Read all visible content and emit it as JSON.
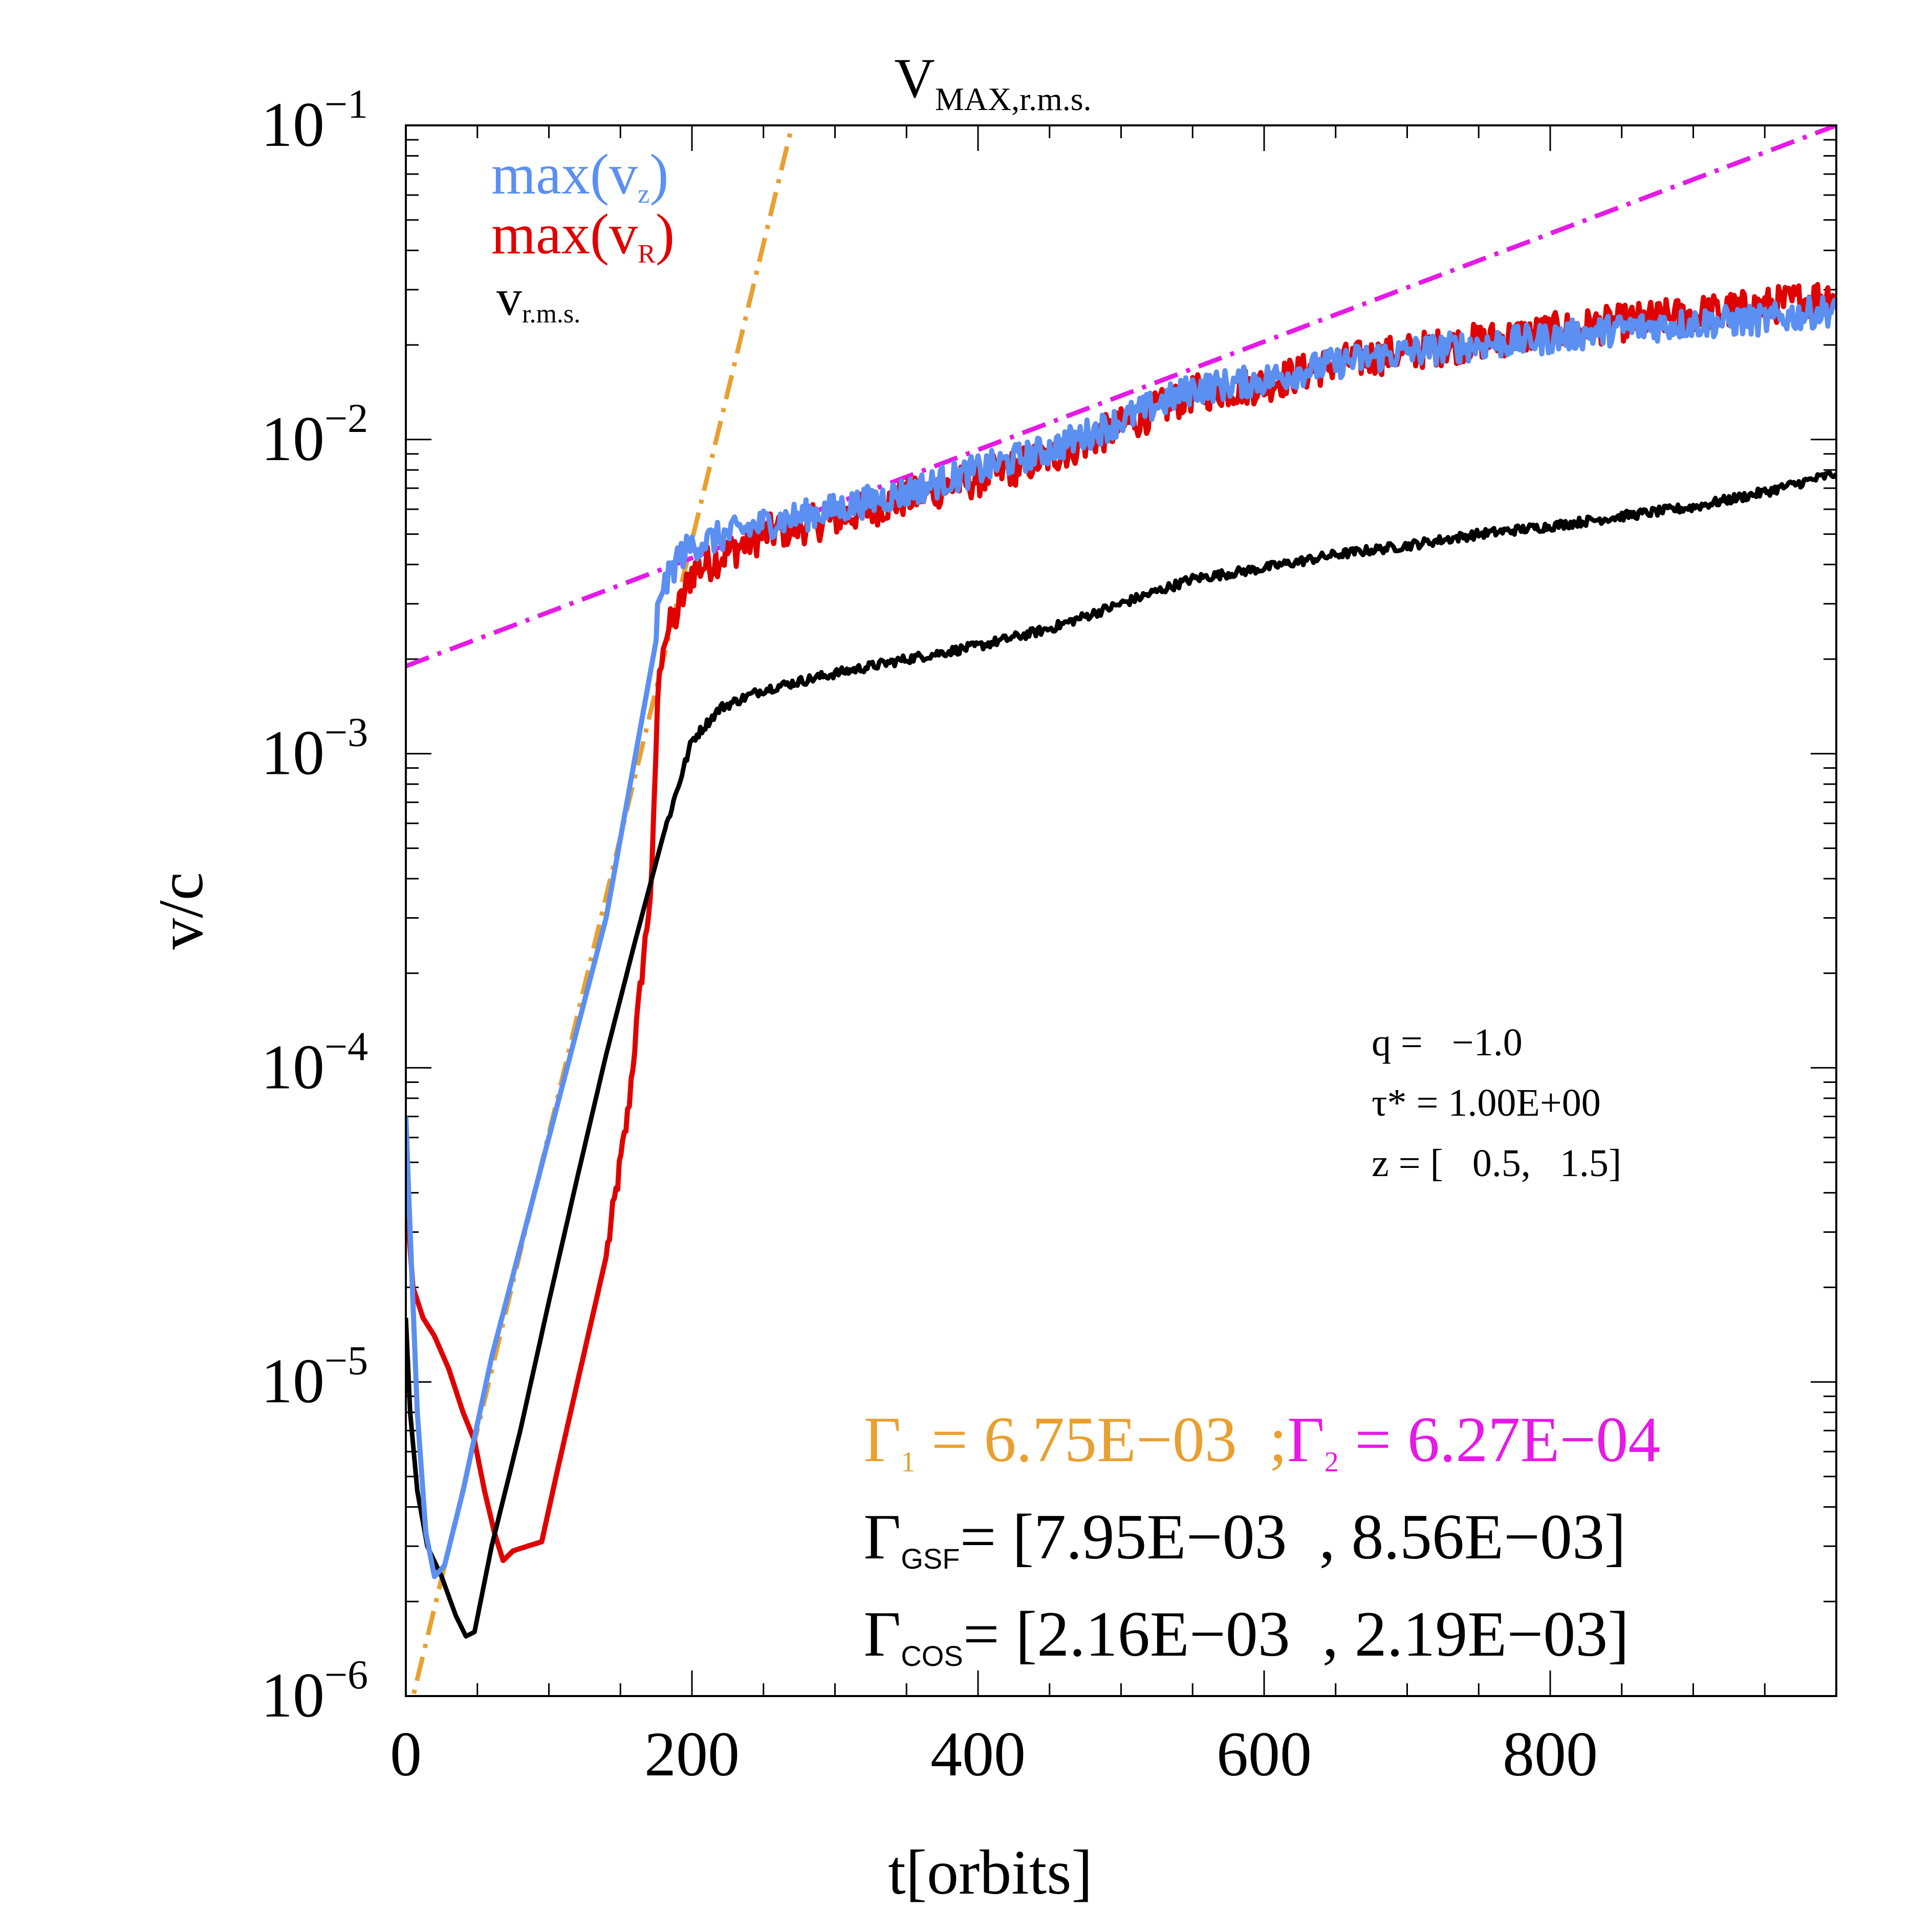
{
  "chart_data": {
    "type": "line",
    "title": "V",
    "title_sub": "MAX,r.m.s.",
    "xlabel": "t[orbits]",
    "ylabel": "v/c",
    "xlim": [
      0,
      1000
    ],
    "ylim": [
      1e-06,
      0.1
    ],
    "yscale": "log",
    "x_ticks": [
      {
        "value": 0,
        "label": "0"
      },
      {
        "value": 200,
        "label": "200"
      },
      {
        "value": 400,
        "label": "400"
      },
      {
        "value": 600,
        "label": "600"
      },
      {
        "value": 800,
        "label": "800"
      }
    ],
    "y_ticks": [
      {
        "value": 0.1,
        "base": "10",
        "exp": "−1"
      },
      {
        "value": 0.01,
        "base": "10",
        "exp": "−2"
      },
      {
        "value": 0.001,
        "base": "10",
        "exp": "−3"
      },
      {
        "value": 0.0001,
        "base": "10",
        "exp": "−4"
      },
      {
        "value": 1e-05,
        "base": "10",
        "exp": "−5"
      },
      {
        "value": 1e-06,
        "base": "10",
        "exp": "−6"
      }
    ],
    "legend": [
      {
        "label": "max(v",
        "sub": "z",
        "close": ")",
        "color": "#5b8ff2"
      },
      {
        "label": "max(v",
        "sub": "R",
        "close": ")",
        "color": "#e00000"
      },
      {
        "label": "v",
        "sub": "r.m.s.",
        "close": "",
        "color": "#000000"
      }
    ],
    "series": [
      {
        "name": "max(v_z)",
        "color": "#5b8ff2",
        "noise": 0.05,
        "points": [
          [
            0,
            7e-05
          ],
          [
            3,
            3e-05
          ],
          [
            8,
            8e-06
          ],
          [
            14,
            3.3e-06
          ],
          [
            20,
            2.4e-06
          ],
          [
            27,
            2.6e-06
          ],
          [
            40,
            4.5e-06
          ],
          [
            60,
            1.2e-05
          ],
          [
            100,
            6e-05
          ],
          [
            140,
            0.0003
          ],
          [
            175,
            0.0023
          ],
          [
            176,
            0.003
          ],
          [
            180,
            0.0033
          ],
          [
            190,
            0.0042
          ],
          [
            200,
            0.0046
          ],
          [
            250,
            0.0054
          ],
          [
            300,
            0.006
          ],
          [
            350,
            0.0068
          ],
          [
            400,
            0.008
          ],
          [
            450,
            0.0093
          ],
          [
            500,
            0.0115
          ],
          [
            550,
            0.0145
          ],
          [
            600,
            0.0155
          ],
          [
            650,
            0.0175
          ],
          [
            700,
            0.019
          ],
          [
            750,
            0.02
          ],
          [
            800,
            0.021
          ],
          [
            850,
            0.0225
          ],
          [
            900,
            0.0235
          ],
          [
            950,
            0.024
          ],
          [
            1000,
            0.026
          ]
        ]
      },
      {
        "name": "max(v_R)",
        "color": "#e00000",
        "noise": 0.06,
        "points": [
          [
            0,
            4e-05
          ],
          [
            5,
            2e-05
          ],
          [
            12,
            1.6e-05
          ],
          [
            20,
            1.4e-05
          ],
          [
            30,
            1.1e-05
          ],
          [
            40,
            8e-06
          ],
          [
            48,
            6.5e-06
          ],
          [
            55,
            4.5e-06
          ],
          [
            62,
            3.3e-06
          ],
          [
            68,
            2.7e-06
          ],
          [
            75,
            2.9e-06
          ],
          [
            85,
            3e-06
          ],
          [
            95,
            3.1e-06
          ],
          [
            105,
            5e-06
          ],
          [
            120,
            1e-05
          ],
          [
            140,
            2.5e-05
          ],
          [
            155,
            7e-05
          ],
          [
            165,
            0.0002
          ],
          [
            172,
            0.0004
          ],
          [
            176,
            0.0015
          ],
          [
            180,
            0.0023
          ],
          [
            190,
            0.0028
          ],
          [
            200,
            0.0038
          ],
          [
            250,
            0.005
          ],
          [
            300,
            0.0056
          ],
          [
            350,
            0.0065
          ],
          [
            400,
            0.0075
          ],
          [
            450,
            0.0088
          ],
          [
            500,
            0.011
          ],
          [
            550,
            0.014
          ],
          [
            600,
            0.015
          ],
          [
            650,
            0.0175
          ],
          [
            700,
            0.019
          ],
          [
            750,
            0.0205
          ],
          [
            800,
            0.022
          ],
          [
            850,
            0.0235
          ],
          [
            900,
            0.025
          ],
          [
            950,
            0.0265
          ],
          [
            1000,
            0.029
          ]
        ]
      },
      {
        "name": "v_r.m.s.",
        "color": "#000000",
        "noise": 0.015,
        "points": [
          [
            0,
            1.6e-05
          ],
          [
            3,
            8e-06
          ],
          [
            8,
            4.5e-06
          ],
          [
            15,
            3e-06
          ],
          [
            25,
            2.4e-06
          ],
          [
            35,
            1.8e-06
          ],
          [
            42,
            1.55e-06
          ],
          [
            48,
            1.6e-06
          ],
          [
            60,
            3e-06
          ],
          [
            80,
            7e-06
          ],
          [
            100,
            1.8e-05
          ],
          [
            120,
            4.5e-05
          ],
          [
            140,
            0.00011
          ],
          [
            160,
            0.00025
          ],
          [
            180,
            0.00055
          ],
          [
            200,
            0.0011
          ],
          [
            220,
            0.0014
          ],
          [
            250,
            0.0016
          ],
          [
            300,
            0.0018
          ],
          [
            350,
            0.002
          ],
          [
            400,
            0.0022
          ],
          [
            450,
            0.0025
          ],
          [
            500,
            0.003
          ],
          [
            550,
            0.0036
          ],
          [
            600,
            0.0039
          ],
          [
            650,
            0.0043
          ],
          [
            700,
            0.0046
          ],
          [
            750,
            0.005
          ],
          [
            800,
            0.0053
          ],
          [
            850,
            0.0057
          ],
          [
            900,
            0.0061
          ],
          [
            950,
            0.0068
          ],
          [
            1000,
            0.0078
          ]
        ]
      }
    ],
    "fit_lines": [
      {
        "name": "Gamma_1 fit",
        "color": "#e8a030",
        "points": [
          [
            0,
            8e-07
          ],
          [
            270,
            0.1
          ]
        ]
      },
      {
        "name": "Gamma_2 fit",
        "color": "#e619e6",
        "points": [
          [
            0,
            0.0019
          ],
          [
            1000,
            0.1
          ]
        ]
      }
    ],
    "params": [
      "q =   −1.0",
      "τ* = 1.00E+00",
      "z = [   0.5,   1.5]"
    ],
    "annotations": {
      "gamma1": {
        "symbol": "Γ",
        "sub": "1",
        "text": " = 6.75E−03  ;",
        "color": "#e8a030"
      },
      "gamma2": {
        "symbol": "Γ",
        "sub": "2",
        "text": " = 6.27E−04",
        "color": "#e619e6"
      },
      "gsf": {
        "symbol": "Γ",
        "sub": "GSF",
        "text": "= [7.95E−03  , 8.56E−03]",
        "color": "#000000"
      },
      "cos": {
        "symbol": "Γ",
        "sub": "COS",
        "text": "= [2.16E−03  , 2.19E−03]",
        "color": "#000000"
      }
    }
  }
}
